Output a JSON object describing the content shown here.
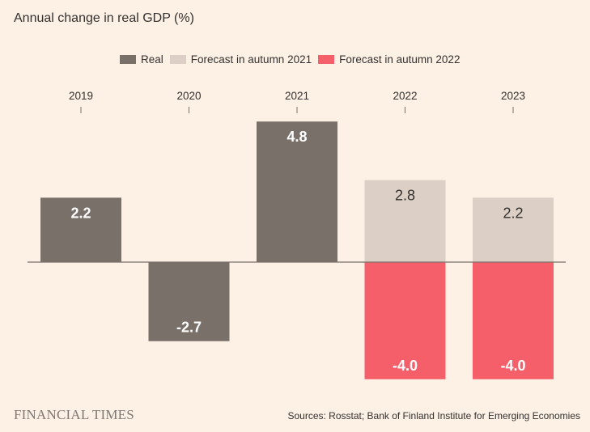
{
  "title": "Annual change in real GDP (%)",
  "brand": "FINANCIAL TIMES",
  "source": "Sources: Rosstat; Bank of Finland Institute for Emerging Economies",
  "colors": {
    "real": "#7a706a",
    "forecast_2021": "#dcd0c6",
    "forecast_2022": "#f45f6a",
    "axis": "#7a706a",
    "label_light": "#ffffff",
    "label_dark": "#33302e"
  },
  "chart_data": {
    "type": "bar",
    "categories": [
      "2019",
      "2020",
      "2021",
      "2022",
      "2023"
    ],
    "series": [
      {
        "name": "Real",
        "key": "real",
        "values": [
          2.2,
          -2.7,
          4.8,
          null,
          null
        ],
        "labels": [
          "2.2",
          "-2.7",
          "4.8",
          "",
          ""
        ]
      },
      {
        "name": "Forecast in autumn 2021",
        "key": "forecast_2021",
        "values": [
          null,
          null,
          null,
          2.8,
          2.2
        ],
        "labels": [
          "",
          "",
          "",
          "2.8",
          "2.2"
        ]
      },
      {
        "name": "Forecast in autumn 2022",
        "key": "forecast_2022",
        "values": [
          null,
          null,
          null,
          -4.0,
          -4.0
        ],
        "labels": [
          "",
          "",
          "",
          "-4.0",
          "-4.0"
        ]
      }
    ],
    "ylim": [
      -4.0,
      4.8
    ],
    "legend_position": "top"
  }
}
